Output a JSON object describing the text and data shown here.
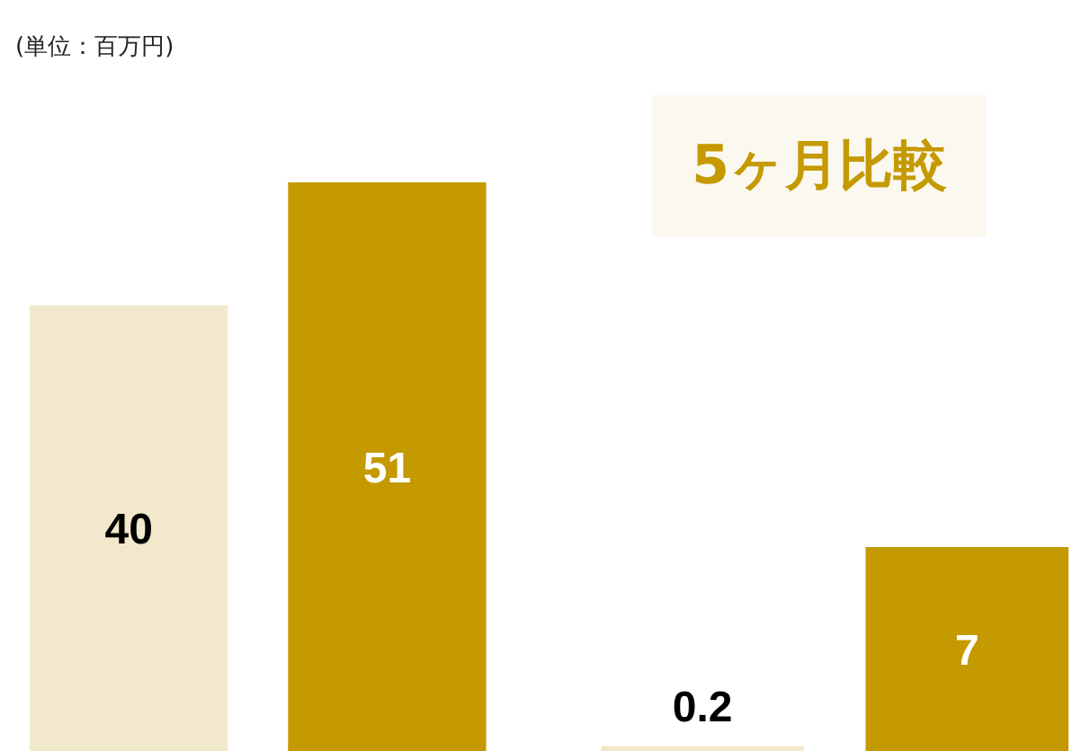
{
  "chart_data": [
    {
      "type": "bar",
      "categories": [
        null,
        null
      ],
      "values": [
        40,
        51
      ],
      "colors": [
        "#f2e8cc",
        "#c49a00"
      ],
      "data_labels": true,
      "annotations": [
        "(単位：百万円)"
      ]
    },
    {
      "type": "bar",
      "categories": [
        null,
        null
      ],
      "values": [
        0.2,
        7
      ],
      "colors": [
        "#f2e8cc",
        "#c49a00"
      ],
      "data_labels": true,
      "annotations": [
        "5ヶ月比較"
      ]
    }
  ]
}
